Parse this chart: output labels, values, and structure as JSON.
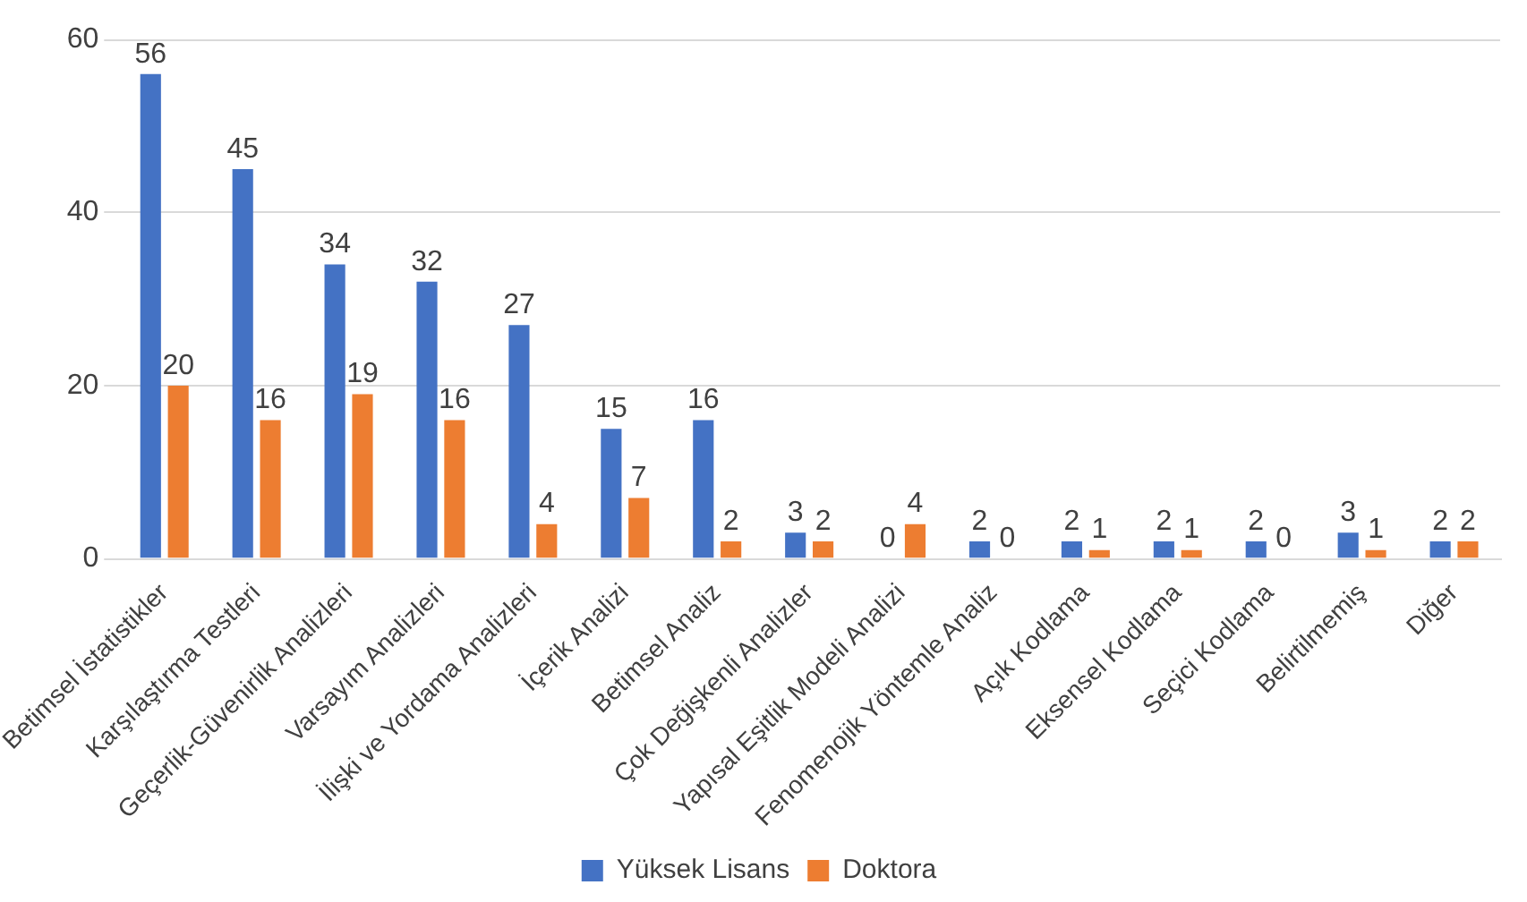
{
  "chart_data": {
    "type": "bar",
    "categories": [
      "Betimsel İstatistikler",
      "Karşılaştırma Testleri",
      "Geçerlik-Güvenirlik Analizleri",
      "Varsayım Analizleri",
      "İlişki ve Yordama Analizleri",
      "İçerik Analizi",
      "Betimsel Analiz",
      "Çok Değişkenli Analizler",
      "Yapısal Eşitlik Modeli Analizi",
      "Fenomenojik Yöntemle Analiz",
      "Açık Kodlama",
      "Eksensel Kodlama",
      "Seçici Kodlama",
      "Belirtilmemiş",
      "Diğer"
    ],
    "series": [
      {
        "name": "Yüksek Lisans",
        "color": "#4472c4",
        "values": [
          56,
          45,
          34,
          32,
          27,
          15,
          16,
          3,
          0,
          2,
          2,
          2,
          2,
          3,
          2
        ]
      },
      {
        "name": "Doktora",
        "color": "#ed7d31",
        "values": [
          20,
          16,
          19,
          16,
          4,
          7,
          2,
          2,
          4,
          0,
          1,
          1,
          0,
          1,
          2
        ]
      }
    ],
    "ylim": [
      0,
      60
    ],
    "yticks": [
      0,
      20,
      40,
      60
    ],
    "grid": "y",
    "legend": "bottom",
    "data_labels": true
  }
}
